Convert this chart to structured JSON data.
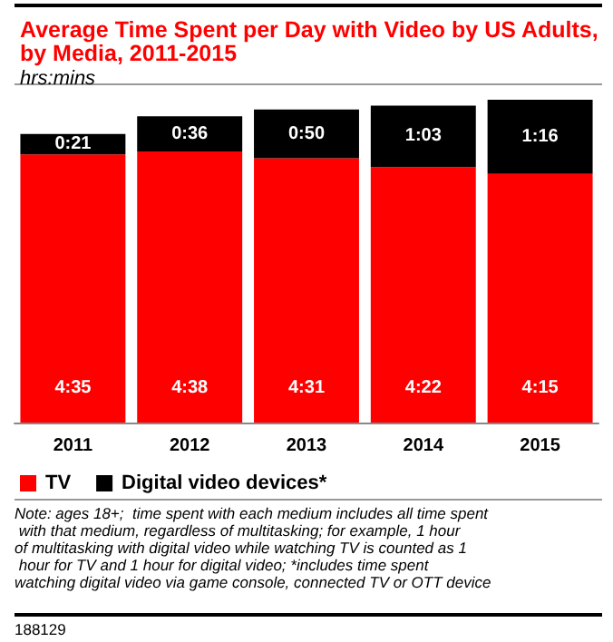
{
  "chart_data": {
    "type": "bar",
    "title": "Average Time Spent per Day with Video by US Adults, by Media, 2011-2015",
    "subtitle": "hrs:mins",
    "categories": [
      "2011",
      "2012",
      "2013",
      "2014",
      "2015"
    ],
    "stacked": true,
    "legend": "bottom left",
    "series": [
      {
        "name": "TV",
        "color": "#ff0000",
        "values": [
          275,
          278,
          271,
          262,
          255
        ],
        "value_labels": [
          "4:35",
          "4:38",
          "4:31",
          "4:22",
          "4:15"
        ]
      },
      {
        "name": "Digital video devices*",
        "color": "#000000",
        "values": [
          21,
          36,
          50,
          63,
          76
        ],
        "value_labels": [
          "0:21",
          "0:36",
          "0:50",
          "1:03",
          "1:16"
        ]
      }
    ],
    "annotations": [
      "Note: ages 18+;  time spent with each medium includes all time spent with that medium, regardless of multitasking; for example, 1 hour of multitasking with digital video while watching TV is counted as 1 hour for TV and 1 hour for digital video; *includes time spent watching digital video via game console, connected TV or OTT device",
      "188129"
    ]
  }
}
